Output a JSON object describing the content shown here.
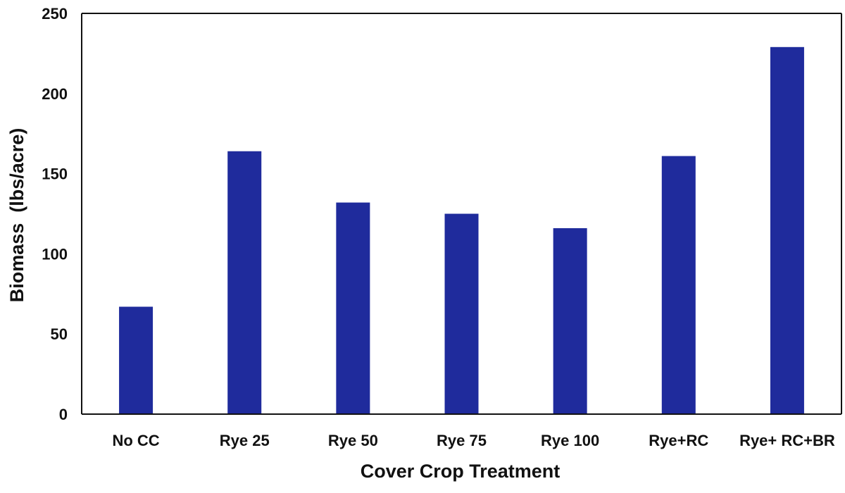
{
  "chart_data": {
    "type": "bar",
    "title": "",
    "xlabel": "Cover Crop Treatment",
    "ylabel": "Biomass  (lbs/acre)",
    "ylim": [
      0,
      250
    ],
    "yticks": [
      0,
      50,
      100,
      150,
      200,
      250
    ],
    "categories": [
      "No CC",
      "Rye 25",
      "Rye 50",
      "Rye 75",
      "Rye 100",
      "Rye+RC",
      "Rye+ RC+BR"
    ],
    "values": [
      67,
      164,
      132,
      125,
      116,
      161,
      229
    ],
    "bar_color": "#1f2b9c",
    "grid": false,
    "legend": "none"
  }
}
